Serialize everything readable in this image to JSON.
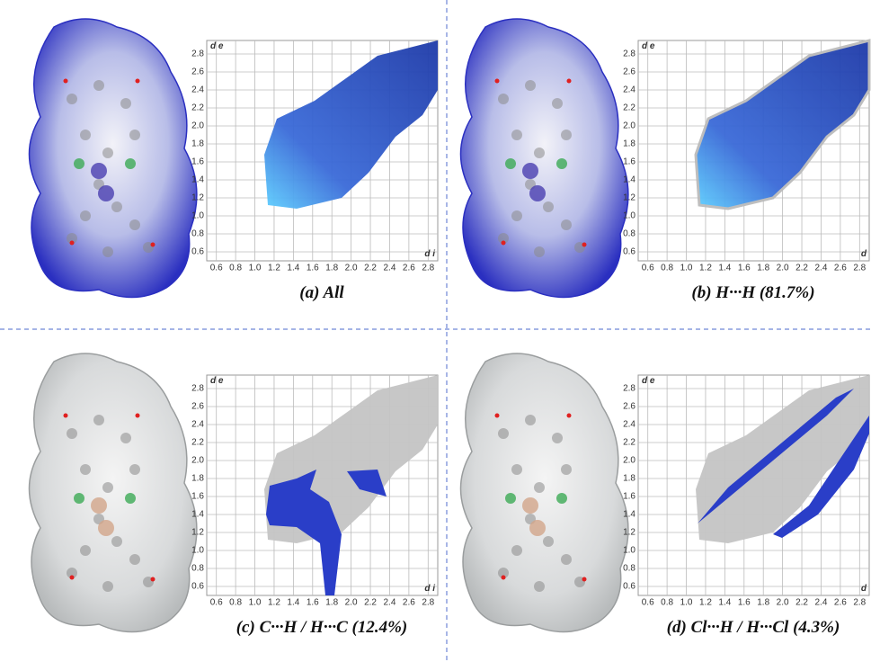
{
  "panels": [
    {
      "caption": "(a) All",
      "y_label": "d e",
      "x_label": "d i",
      "xlim": [
        0.5,
        2.9
      ],
      "ylim": [
        0.5,
        2.95
      ],
      "xticks": [
        0.6,
        0.8,
        {
          "value": 1,
          "label": "1.0"
        },
        1.2,
        1.4,
        1.6,
        1.8,
        {
          "value": 2,
          "label": "2.0"
        },
        2.2,
        2.4,
        2.6,
        2.8
      ],
      "yticks": [
        0.6,
        0.8,
        {
          "value": 1,
          "label": "1.0"
        },
        1.2,
        1.4,
        1.6,
        1.8,
        {
          "value": 2,
          "label": "2.0"
        },
        2.2,
        2.4,
        2.6,
        2.8
      ]
    },
    {
      "caption": "(b) H···H (81.7%)",
      "y_label": "d e",
      "x_label": "d",
      "xlim": [
        0.5,
        2.9
      ],
      "ylim": [
        0.5,
        2.95
      ],
      "xticks": [
        0.6,
        0.8,
        {
          "value": 1,
          "label": "1.0"
        },
        1.2,
        1.4,
        1.6,
        1.8,
        {
          "value": 2,
          "label": "2.0"
        },
        2.2,
        2.4,
        2.6,
        2.8
      ],
      "yticks": [
        0.6,
        0.8,
        {
          "value": 1,
          "label": "1.0"
        },
        1.2,
        1.4,
        1.6,
        1.8,
        {
          "value": 2,
          "label": "2.0"
        },
        2.2,
        2.4,
        2.6,
        2.8
      ]
    },
    {
      "caption": "(c) C···H / H···C (12.4%)",
      "y_label": "d e",
      "x_label": "d i",
      "xlim": [
        0.5,
        2.9
      ],
      "ylim": [
        0.5,
        2.95
      ],
      "xticks": [
        0.6,
        0.8,
        {
          "value": 1,
          "label": "1.0"
        },
        1.2,
        1.4,
        1.6,
        1.8,
        {
          "value": 2,
          "label": "2.0"
        },
        2.2,
        2.4,
        2.6,
        2.8
      ],
      "yticks": [
        0.6,
        0.8,
        {
          "value": 1,
          "label": "1.0"
        },
        1.2,
        1.4,
        1.6,
        1.8,
        {
          "value": 2,
          "label": "2.0"
        },
        2.2,
        2.4,
        2.6,
        2.8
      ]
    },
    {
      "caption": "(d) Cl···H / H···Cl (4.3%)",
      "y_label": "d e",
      "x_label": "d",
      "xlim": [
        0.5,
        2.9
      ],
      "ylim": [
        0.5,
        2.95
      ],
      "xticks": [
        0.6,
        0.8,
        {
          "value": 1,
          "label": "1.0"
        },
        1.2,
        1.4,
        1.6,
        1.8,
        {
          "value": 2,
          "label": "2.0"
        },
        2.2,
        2.4,
        2.6,
        2.8
      ],
      "yticks": [
        0.6,
        0.8,
        {
          "value": 1,
          "label": "1.0"
        },
        1.2,
        1.4,
        1.6,
        1.8,
        {
          "value": 2,
          "label": "2.0"
        },
        2.2,
        2.4,
        2.6,
        2.8
      ]
    }
  ]
}
